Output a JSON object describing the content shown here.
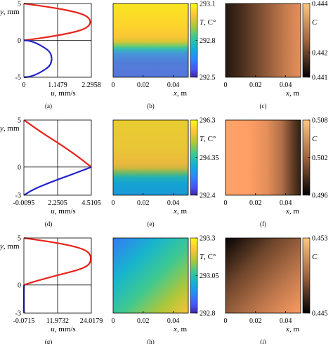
{
  "chart_data": [
    {
      "row": 0,
      "profile": {
        "type": "line",
        "caption": "(a)",
        "xlabel_var": "u",
        "xlabel_unit": ", mm/s",
        "ylabel_var": "y",
        "ylabel_unit": ", mm",
        "xticks": [
          0,
          1.1479,
          2.2958
        ],
        "xtick_labels": [
          "0",
          "1.1479",
          "2.2958"
        ],
        "xlim": [
          0,
          2.2958
        ],
        "yticks": [
          -5,
          0,
          5
        ],
        "ytick_labels": [
          "-5",
          "0",
          "5"
        ],
        "ylim": [
          -5,
          5
        ],
        "series": [
          {
            "color": "#e8241c",
            "x": [
              0.0,
              1.0,
              1.72,
              2.15,
              2.2958,
              2.15,
              1.72,
              1.0,
              0.2,
              0.0
            ],
            "y": [
              5.0,
              4.44,
              3.89,
              3.33,
              2.5,
              1.67,
              1.11,
              0.56,
              0.1,
              0.0
            ]
          },
          {
            "color": "#2222cc",
            "x": [
              0.95,
              0.9,
              0.5,
              0.2,
              0.0
            ],
            "y": [
              -2.5,
              -1.5,
              -0.5,
              -0.05,
              0.0
            ]
          },
          {
            "color": "#2222cc",
            "x": [
              0.95,
              0.9,
              0.5,
              0.2,
              0.0
            ],
            "y": [
              -2.5,
              -3.5,
              -4.5,
              -4.95,
              -5.0
            ]
          }
        ]
      },
      "temperature": {
        "type": "heatmap",
        "caption": "(b)",
        "colormap": "parula",
        "xlabel_var": "x",
        "xlabel_unit": ", m",
        "xticks": [
          0.02,
          0.04
        ],
        "xtick_labels": [
          "0.02",
          "0.04"
        ],
        "xlim": [
          0,
          0.05
        ],
        "cbar_label_var": "T",
        "cbar_label_unit": ", C°",
        "cbar_ticks": [
          292.5,
          292.8,
          293.1
        ],
        "cbar_tick_labels": [
          "292.5",
          "292.8",
          "293.1"
        ],
        "cbar_range": [
          292.5,
          293.1
        ],
        "color_stops": [
          [
            0.0,
            0.95
          ],
          [
            0.3,
            0.9
          ],
          [
            0.45,
            0.85
          ],
          [
            0.52,
            0.78
          ],
          [
            0.58,
            0.6
          ],
          [
            0.62,
            0.45
          ],
          [
            0.68,
            0.3
          ],
          [
            0.8,
            0.22
          ],
          [
            1.0,
            0.2
          ]
        ],
        "x_shift": [
          0.0,
          0.06
        ]
      },
      "concentration": {
        "type": "heatmap",
        "caption": "(c)",
        "colormap": "copper",
        "xlabel_var": "x",
        "xlabel_unit": ", m",
        "xticks": [
          0.02,
          0.04
        ],
        "xtick_labels": [
          "0.02",
          "0.04"
        ],
        "xlim": [
          0,
          0.05
        ],
        "cbar_label_var": "C",
        "cbar_ticks": [
          0.441,
          0.442,
          0.444
        ],
        "cbar_tick_labels": [
          "0.441",
          "0.442",
          "0.444"
        ],
        "cbar_range": [
          0.441,
          0.444
        ],
        "x_profile": [
          [
            0.0,
            0.12
          ],
          [
            0.2,
            0.22
          ],
          [
            0.5,
            0.42
          ],
          [
            0.8,
            0.62
          ],
          [
            1.0,
            0.72
          ]
        ]
      }
    },
    {
      "row": 1,
      "profile": {
        "type": "line",
        "caption": "(d)",
        "xlabel_var": "u",
        "xlabel_unit": ", mm/s",
        "ylabel_var": "y",
        "ylabel_unit": ", mm",
        "xticks": [
          -0.0095,
          2.2505,
          4.5105
        ],
        "xtick_labels": [
          "-0.0095",
          "2.2505",
          "4.5105"
        ],
        "xlim": [
          -0.0095,
          4.5105
        ],
        "yticks": [
          -3,
          0,
          5
        ],
        "ytick_labels": [
          "-3",
          "0",
          "5"
        ],
        "ylim": [
          -3,
          5
        ],
        "series": [
          {
            "color": "#e8241c",
            "x": [
              0.0,
              1.15,
              2.35,
              3.45,
              4.5105
            ],
            "y": [
              5.0,
              3.7,
              2.5,
              1.3,
              0.0
            ]
          },
          {
            "color": "#2222cc",
            "x": [
              4.5105,
              3.2,
              1.8,
              0.6,
              0.0
            ],
            "y": [
              0.0,
              -0.8,
              -1.6,
              -2.4,
              -3.0
            ]
          }
        ]
      },
      "temperature": {
        "type": "heatmap",
        "caption": "(e)",
        "colormap": "parula",
        "xlabel_var": "x",
        "xlabel_unit": ", m",
        "xticks": [
          0.02,
          0.04
        ],
        "xtick_labels": [
          "0.02",
          "0.04"
        ],
        "xlim": [
          0,
          0.05
        ],
        "cbar_label_var": "T",
        "cbar_label_unit": ", C°",
        "cbar_ticks": [
          292.4,
          294.35,
          296.3
        ],
        "cbar_tick_labels": [
          "292.4",
          "294.35",
          "296.3"
        ],
        "cbar_range": [
          292.4,
          296.3
        ],
        "color_stops": [
          [
            0.0,
            0.92
          ],
          [
            0.4,
            0.9
          ],
          [
            0.58,
            0.86
          ],
          [
            0.64,
            0.8
          ],
          [
            0.7,
            0.65
          ],
          [
            0.76,
            0.5
          ],
          [
            0.84,
            0.42
          ],
          [
            1.0,
            0.38
          ]
        ],
        "x_shift": [
          0.0,
          -0.04
        ]
      },
      "concentration": {
        "type": "heatmap",
        "caption": "(f)",
        "colormap": "copper",
        "xlabel_var": "x",
        "xlabel_unit": ", m",
        "xticks": [
          0.02,
          0.04
        ],
        "xtick_labels": [
          "0.02",
          "0.04"
        ],
        "xlim": [
          0,
          0.05
        ],
        "cbar_label_var": "C",
        "cbar_ticks": [
          0.496,
          0.502,
          0.508
        ],
        "cbar_tick_labels": [
          "0.496",
          "0.502",
          "0.508"
        ],
        "cbar_range": [
          0.496,
          0.508
        ],
        "x_profile": [
          [
            0.0,
            0.82
          ],
          [
            0.3,
            0.8
          ],
          [
            0.55,
            0.72
          ],
          [
            0.75,
            0.55
          ],
          [
            0.9,
            0.3
          ],
          [
            1.0,
            0.15
          ]
        ]
      }
    },
    {
      "row": 2,
      "profile": {
        "type": "line",
        "caption": "(g)",
        "xlabel_var": "u",
        "xlabel_unit": ", mm/s",
        "ylabel_var": "y",
        "ylabel_unit": ", mm",
        "xticks": [
          -0.0715,
          11.9732,
          24.0179
        ],
        "xtick_labels": [
          "-0.0715",
          "11.9732",
          "24.0179"
        ],
        "xlim": [
          -0.0715,
          24.0179
        ],
        "yticks": [
          -3,
          0,
          5
        ],
        "ytick_labels": [
          "-3",
          "0",
          "5"
        ],
        "ylim": [
          -3,
          5
        ],
        "series": [
          {
            "color": "#e8241c",
            "x": [
              0.0,
              11.5,
              19.5,
              23.2,
              24.0179,
              23.2,
              19.5,
              11.5,
              4.0,
              0.0
            ],
            "y": [
              5.0,
              4.5,
              4.0,
              3.5,
              2.8,
              2.1,
              1.6,
              1.0,
              0.4,
              0.0
            ]
          },
          {
            "color": "#2222cc",
            "x": [
              0.0,
              -0.0715,
              -0.0715,
              -0.0715,
              0.0
            ],
            "y": [
              0.0,
              -0.5,
              -1.5,
              -2.5,
              -3.0
            ]
          }
        ]
      },
      "temperature": {
        "type": "heatmap",
        "caption": "(h)",
        "colormap": "parula",
        "xlabel_var": "x",
        "xlabel_unit": ", m",
        "xticks": [
          0.02,
          0.04
        ],
        "xtick_labels": [
          "0.02",
          "0.04"
        ],
        "xlim": [
          0,
          0.05
        ],
        "cbar_label_var": "T",
        "cbar_label_unit": ", C°",
        "cbar_ticks": [
          292.8,
          293.05,
          293.3
        ],
        "cbar_tick_labels": [
          "292.8",
          "293.05",
          "293.3"
        ],
        "cbar_range": [
          292.8,
          293.3
        ],
        "diagonal": true,
        "color_stops": [
          [
            0.0,
            0.25
          ],
          [
            0.3,
            0.45
          ],
          [
            0.55,
            0.58
          ],
          [
            0.8,
            0.72
          ],
          [
            1.0,
            0.85
          ]
        ]
      },
      "concentration": {
        "type": "heatmap",
        "caption": "(i)",
        "colormap": "copper",
        "xlabel_var": "x",
        "xlabel_unit": ", m",
        "xticks": [
          0.02,
          0.04
        ],
        "xtick_labels": [
          "0.02",
          "0.04"
        ],
        "xlim": [
          0,
          0.05
        ],
        "cbar_label_var": "C",
        "cbar_ticks": [
          0.445,
          0.453
        ],
        "cbar_tick_labels": [
          "0.445",
          "0.453"
        ],
        "cbar_range": [
          0.445,
          0.453
        ],
        "diagonal": true
      }
    }
  ]
}
